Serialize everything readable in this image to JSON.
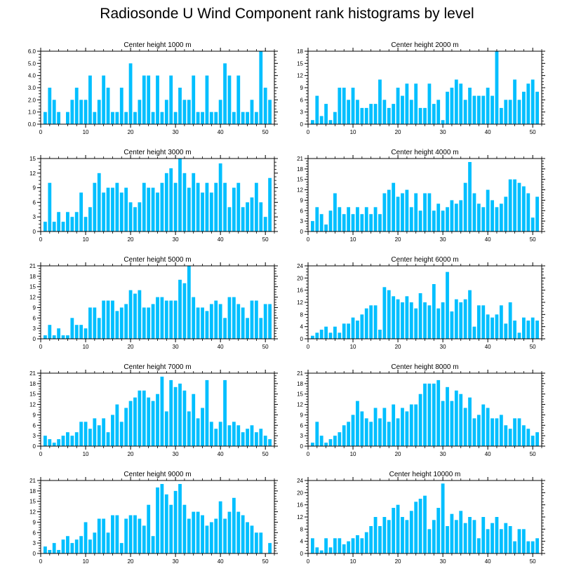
{
  "title": "Radiosonde U Wind Component rank histograms by level",
  "colors": {
    "bar": "#00BFFF",
    "axis": "#000000",
    "background": "#FFFFFF"
  },
  "chart_data": [
    {
      "type": "bar",
      "title": "Center height 1000 m",
      "ylim": [
        0,
        6.0
      ],
      "yticks": [
        0.0,
        1.0,
        2.0,
        3.0,
        4.0,
        5.0,
        6.0
      ],
      "ytick_labels": [
        "0.0",
        "1.0",
        "2.0",
        "3.0",
        "4.0",
        "5.0",
        "6.0"
      ],
      "xlim": [
        0,
        52
      ],
      "xticks": [
        0,
        10,
        20,
        30,
        40,
        50
      ],
      "xtick_labels": [
        "0",
        "10",
        "20",
        "30",
        "40",
        "50"
      ],
      "x": [
        1,
        2,
        3,
        4,
        5,
        6,
        7,
        8,
        9,
        10,
        11,
        12,
        13,
        14,
        15,
        16,
        17,
        18,
        19,
        20,
        21,
        22,
        23,
        24,
        25,
        26,
        27,
        28,
        29,
        30,
        31,
        32,
        33,
        34,
        35,
        36,
        37,
        38,
        39,
        40,
        41,
        42,
        43,
        44,
        45,
        46,
        47,
        48,
        49,
        50,
        51
      ],
      "values": [
        1,
        3,
        2,
        1,
        0,
        1,
        2,
        3,
        2,
        2,
        4,
        1,
        2,
        4,
        3,
        1,
        1,
        3,
        1,
        5,
        1,
        2,
        4,
        4,
        1,
        4,
        1,
        2,
        4,
        1,
        3,
        2,
        2,
        4,
        1,
        1,
        4,
        1,
        1,
        2,
        5,
        4,
        1,
        4,
        1,
        1,
        2,
        1,
        6,
        3,
        2
      ]
    },
    {
      "type": "bar",
      "title": "Center height 2000 m",
      "ylim": [
        0,
        18
      ],
      "yticks": [
        0,
        3,
        6,
        9,
        12,
        15,
        18
      ],
      "ytick_labels": [
        "0",
        "3",
        "6",
        "9",
        "12",
        "15",
        "18"
      ],
      "xlim": [
        0,
        52
      ],
      "xticks": [
        0,
        10,
        20,
        30,
        40,
        50
      ],
      "xtick_labels": [
        "0",
        "10",
        "20",
        "30",
        "40",
        "50"
      ],
      "x": [
        1,
        2,
        3,
        4,
        5,
        6,
        7,
        8,
        9,
        10,
        11,
        12,
        13,
        14,
        15,
        16,
        17,
        18,
        19,
        20,
        21,
        22,
        23,
        24,
        25,
        26,
        27,
        28,
        29,
        30,
        31,
        32,
        33,
        34,
        35,
        36,
        37,
        38,
        39,
        40,
        41,
        42,
        43,
        44,
        45,
        46,
        47,
        48,
        49,
        50,
        51
      ],
      "values": [
        1,
        7,
        2,
        5,
        1,
        3,
        9,
        9,
        6,
        9,
        6,
        4,
        4,
        5,
        5,
        11,
        6,
        4,
        5,
        9,
        7,
        10,
        6,
        10,
        4,
        4,
        10,
        5,
        6,
        1,
        8,
        9,
        11,
        10,
        6,
        9,
        7,
        7,
        7,
        9,
        7,
        18,
        4,
        6,
        6,
        11,
        6,
        8,
        10,
        11,
        8
      ]
    },
    {
      "type": "bar",
      "title": "Center height 3000 m",
      "ylim": [
        0,
        15
      ],
      "yticks": [
        0,
        3,
        6,
        9,
        12,
        15
      ],
      "ytick_labels": [
        "0",
        "3",
        "6",
        "9",
        "12",
        "15"
      ],
      "xlim": [
        0,
        52
      ],
      "xticks": [
        0,
        10,
        20,
        30,
        40,
        50
      ],
      "xtick_labels": [
        "0",
        "10",
        "20",
        "30",
        "40",
        "50"
      ],
      "x": [
        1,
        2,
        3,
        4,
        5,
        6,
        7,
        8,
        9,
        10,
        11,
        12,
        13,
        14,
        15,
        16,
        17,
        18,
        19,
        20,
        21,
        22,
        23,
        24,
        25,
        26,
        27,
        28,
        29,
        30,
        31,
        32,
        33,
        34,
        35,
        36,
        37,
        38,
        39,
        40,
        41,
        42,
        43,
        44,
        45,
        46,
        47,
        48,
        49,
        50,
        51
      ],
      "values": [
        2,
        10,
        2,
        4,
        2,
        4,
        3,
        4,
        8,
        3,
        5,
        10,
        12,
        8,
        9,
        9,
        10,
        8,
        9,
        6,
        5,
        6,
        10,
        9,
        9,
        8,
        10,
        12,
        13,
        10,
        15,
        12,
        9,
        12,
        10,
        8,
        10,
        8,
        10,
        14,
        10,
        5,
        9,
        10,
        5,
        6,
        7,
        10,
        6,
        3,
        11
      ]
    },
    {
      "type": "bar",
      "title": "Center height 4000 m",
      "ylim": [
        0,
        21
      ],
      "yticks": [
        0,
        3,
        6,
        9,
        12,
        15,
        18,
        21
      ],
      "ytick_labels": [
        "0",
        "3",
        "6",
        "9",
        "12",
        "15",
        "18",
        "21"
      ],
      "xlim": [
        0,
        52
      ],
      "xticks": [
        0,
        10,
        20,
        30,
        40,
        50
      ],
      "xtick_labels": [
        "0",
        "10",
        "20",
        "30",
        "40",
        "50"
      ],
      "x": [
        1,
        2,
        3,
        4,
        5,
        6,
        7,
        8,
        9,
        10,
        11,
        12,
        13,
        14,
        15,
        16,
        17,
        18,
        19,
        20,
        21,
        22,
        23,
        24,
        25,
        26,
        27,
        28,
        29,
        30,
        31,
        32,
        33,
        34,
        35,
        36,
        37,
        38,
        39,
        40,
        41,
        42,
        43,
        44,
        45,
        46,
        47,
        48,
        49,
        50,
        51
      ],
      "values": [
        3,
        7,
        5,
        2,
        6,
        11,
        7,
        5,
        7,
        5,
        7,
        5,
        7,
        5,
        7,
        5,
        11,
        12,
        14,
        10,
        11,
        12,
        7,
        11,
        6,
        11,
        11,
        6,
        8,
        6,
        7,
        9,
        8,
        9,
        14,
        20,
        11,
        8,
        7,
        12,
        9,
        7,
        8,
        10,
        15,
        15,
        14,
        13,
        11,
        4,
        10
      ]
    },
    {
      "type": "bar",
      "title": "Center height 5000 m",
      "ylim": [
        0,
        21
      ],
      "yticks": [
        0,
        3,
        6,
        9,
        12,
        15,
        18,
        21
      ],
      "ytick_labels": [
        "0",
        "3",
        "6",
        "9",
        "12",
        "15",
        "18",
        "21"
      ],
      "xlim": [
        0,
        52
      ],
      "xticks": [
        0,
        10,
        20,
        30,
        40,
        50
      ],
      "xtick_labels": [
        "0",
        "10",
        "20",
        "30",
        "40",
        "50"
      ],
      "x": [
        1,
        2,
        3,
        4,
        5,
        6,
        7,
        8,
        9,
        10,
        11,
        12,
        13,
        14,
        15,
        16,
        17,
        18,
        19,
        20,
        21,
        22,
        23,
        24,
        25,
        26,
        27,
        28,
        29,
        30,
        31,
        32,
        33,
        34,
        35,
        36,
        37,
        38,
        39,
        40,
        41,
        42,
        43,
        44,
        45,
        46,
        47,
        48,
        49,
        50,
        51
      ],
      "values": [
        1,
        4,
        1,
        3,
        1,
        1,
        6,
        4,
        4,
        3,
        9,
        9,
        6,
        11,
        11,
        11,
        8,
        9,
        10,
        14,
        13,
        14,
        9,
        9,
        10,
        12,
        12,
        11,
        11,
        11,
        17,
        16,
        21,
        12,
        9,
        9,
        8,
        10,
        11,
        10,
        6,
        12,
        12,
        10,
        9,
        6,
        11,
        11,
        6,
        10,
        10
      ]
    },
    {
      "type": "bar",
      "title": "Center height 6000 m",
      "ylim": [
        0,
        24
      ],
      "yticks": [
        0,
        4,
        8,
        12,
        16,
        20,
        24
      ],
      "ytick_labels": [
        "0",
        "4",
        "8",
        "12",
        "16",
        "20",
        "24"
      ],
      "xlim": [
        0,
        52
      ],
      "xticks": [
        0,
        10,
        20,
        30,
        40,
        50
      ],
      "xtick_labels": [
        "0",
        "10",
        "20",
        "30",
        "40",
        "50"
      ],
      "x": [
        1,
        2,
        3,
        4,
        5,
        6,
        7,
        8,
        9,
        10,
        11,
        12,
        13,
        14,
        15,
        16,
        17,
        18,
        19,
        20,
        21,
        22,
        23,
        24,
        25,
        26,
        27,
        28,
        29,
        30,
        31,
        32,
        33,
        34,
        35,
        36,
        37,
        38,
        39,
        40,
        41,
        42,
        43,
        44,
        45,
        46,
        47,
        48,
        49,
        50,
        51
      ],
      "values": [
        1,
        2,
        3,
        4,
        2,
        4,
        2,
        5,
        5,
        7,
        6,
        8,
        10,
        11,
        11,
        3,
        17,
        16,
        14,
        13,
        12,
        14,
        12,
        10,
        15,
        12,
        11,
        18,
        10,
        12,
        22,
        9,
        13,
        12,
        13,
        16,
        4,
        11,
        11,
        8,
        7,
        8,
        11,
        5,
        12,
        6,
        2,
        7,
        6,
        7,
        6
      ]
    },
    {
      "type": "bar",
      "title": "Center height 7000 m",
      "ylim": [
        0,
        21
      ],
      "yticks": [
        0,
        3,
        6,
        9,
        12,
        15,
        18,
        21
      ],
      "ytick_labels": [
        "0",
        "3",
        "6",
        "9",
        "12",
        "15",
        "18",
        "21"
      ],
      "xlim": [
        0,
        52
      ],
      "xticks": [
        0,
        10,
        20,
        30,
        40,
        50
      ],
      "xtick_labels": [
        "0",
        "10",
        "20",
        "30",
        "40",
        "50"
      ],
      "x": [
        1,
        2,
        3,
        4,
        5,
        6,
        7,
        8,
        9,
        10,
        11,
        12,
        13,
        14,
        15,
        16,
        17,
        18,
        19,
        20,
        21,
        22,
        23,
        24,
        25,
        26,
        27,
        28,
        29,
        30,
        31,
        32,
        33,
        34,
        35,
        36,
        37,
        38,
        39,
        40,
        41,
        42,
        43,
        44,
        45,
        46,
        47,
        48,
        49,
        50,
        51
      ],
      "values": [
        3,
        2,
        1,
        2,
        3,
        4,
        3,
        4,
        7,
        7,
        5,
        8,
        6,
        8,
        4,
        9,
        12,
        7,
        11,
        13,
        14,
        16,
        16,
        14,
        13,
        15,
        20,
        10,
        19,
        17,
        18,
        16,
        10,
        15,
        8,
        11,
        19,
        7,
        5,
        7,
        19,
        6,
        7,
        6,
        4,
        5,
        6,
        4,
        5,
        3,
        2
      ]
    },
    {
      "type": "bar",
      "title": "Center height 8000 m",
      "ylim": [
        0,
        21
      ],
      "yticks": [
        0,
        3,
        6,
        9,
        12,
        15,
        18,
        21
      ],
      "ytick_labels": [
        "0",
        "3",
        "6",
        "9",
        "12",
        "15",
        "18",
        "21"
      ],
      "xlim": [
        0,
        52
      ],
      "xticks": [
        0,
        10,
        20,
        30,
        40,
        50
      ],
      "xtick_labels": [
        "0",
        "10",
        "20",
        "30",
        "40",
        "50"
      ],
      "x": [
        1,
        2,
        3,
        4,
        5,
        6,
        7,
        8,
        9,
        10,
        11,
        12,
        13,
        14,
        15,
        16,
        17,
        18,
        19,
        20,
        21,
        22,
        23,
        24,
        25,
        26,
        27,
        28,
        29,
        30,
        31,
        32,
        33,
        34,
        35,
        36,
        37,
        38,
        39,
        40,
        41,
        42,
        43,
        44,
        45,
        46,
        47,
        48,
        49,
        50,
        51
      ],
      "values": [
        1,
        7,
        3,
        1,
        2,
        3,
        4,
        6,
        7,
        9,
        13,
        10,
        8,
        7,
        11,
        8,
        11,
        7,
        12,
        8,
        11,
        10,
        12,
        12,
        15,
        18,
        18,
        18,
        19,
        13,
        17,
        13,
        16,
        15,
        11,
        14,
        8,
        9,
        12,
        11,
        8,
        8,
        9,
        6,
        5,
        8,
        8,
        6,
        5,
        3,
        4
      ]
    },
    {
      "type": "bar",
      "title": "Center height 9000 m",
      "ylim": [
        0,
        21
      ],
      "yticks": [
        0,
        3,
        6,
        9,
        12,
        15,
        18,
        21
      ],
      "ytick_labels": [
        "0",
        "3",
        "6",
        "9",
        "12",
        "15",
        "18",
        "21"
      ],
      "xlim": [
        0,
        52
      ],
      "xticks": [
        0,
        10,
        20,
        30,
        40,
        50
      ],
      "xtick_labels": [
        "0",
        "10",
        "20",
        "30",
        "40",
        "50"
      ],
      "x": [
        1,
        2,
        3,
        4,
        5,
        6,
        7,
        8,
        9,
        10,
        11,
        12,
        13,
        14,
        15,
        16,
        17,
        18,
        19,
        20,
        21,
        22,
        23,
        24,
        25,
        26,
        27,
        28,
        29,
        30,
        31,
        32,
        33,
        34,
        35,
        36,
        37,
        38,
        39,
        40,
        41,
        42,
        43,
        44,
        45,
        46,
        47,
        48,
        49,
        50,
        51
      ],
      "values": [
        2,
        1,
        3,
        1,
        4,
        5,
        3,
        4,
        5,
        9,
        4,
        6,
        10,
        10,
        6,
        11,
        11,
        3,
        10,
        11,
        11,
        10,
        8,
        14,
        5,
        19,
        20,
        17,
        14,
        18,
        20,
        14,
        10,
        12,
        12,
        11,
        8,
        9,
        10,
        15,
        10,
        12,
        16,
        12,
        11,
        9,
        8,
        6,
        6,
        0,
        3
      ]
    },
    {
      "type": "bar",
      "title": "Center height 10000 m",
      "ylim": [
        0,
        24
      ],
      "yticks": [
        0,
        4,
        8,
        12,
        16,
        20,
        24
      ],
      "ytick_labels": [
        "0",
        "4",
        "8",
        "12",
        "16",
        "20",
        "24"
      ],
      "xlim": [
        0,
        52
      ],
      "xticks": [
        0,
        10,
        20,
        30,
        40,
        50
      ],
      "xtick_labels": [
        "0",
        "10",
        "20",
        "30",
        "40",
        "50"
      ],
      "x": [
        1,
        2,
        3,
        4,
        5,
        6,
        7,
        8,
        9,
        10,
        11,
        12,
        13,
        14,
        15,
        16,
        17,
        18,
        19,
        20,
        21,
        22,
        23,
        24,
        25,
        26,
        27,
        28,
        29,
        30,
        31,
        32,
        33,
        34,
        35,
        36,
        37,
        38,
        39,
        40,
        41,
        42,
        43,
        44,
        45,
        46,
        47,
        48,
        49,
        50,
        51
      ],
      "values": [
        5,
        2,
        1,
        5,
        2,
        5,
        5,
        3,
        4,
        5,
        6,
        5,
        7,
        9,
        12,
        9,
        12,
        11,
        15,
        16,
        12,
        11,
        14,
        17,
        18,
        19,
        8,
        11,
        15,
        23,
        9,
        13,
        11,
        14,
        10,
        12,
        11,
        5,
        12,
        8,
        10,
        12,
        8,
        10,
        9,
        4,
        8,
        8,
        4,
        4,
        5
      ]
    }
  ]
}
